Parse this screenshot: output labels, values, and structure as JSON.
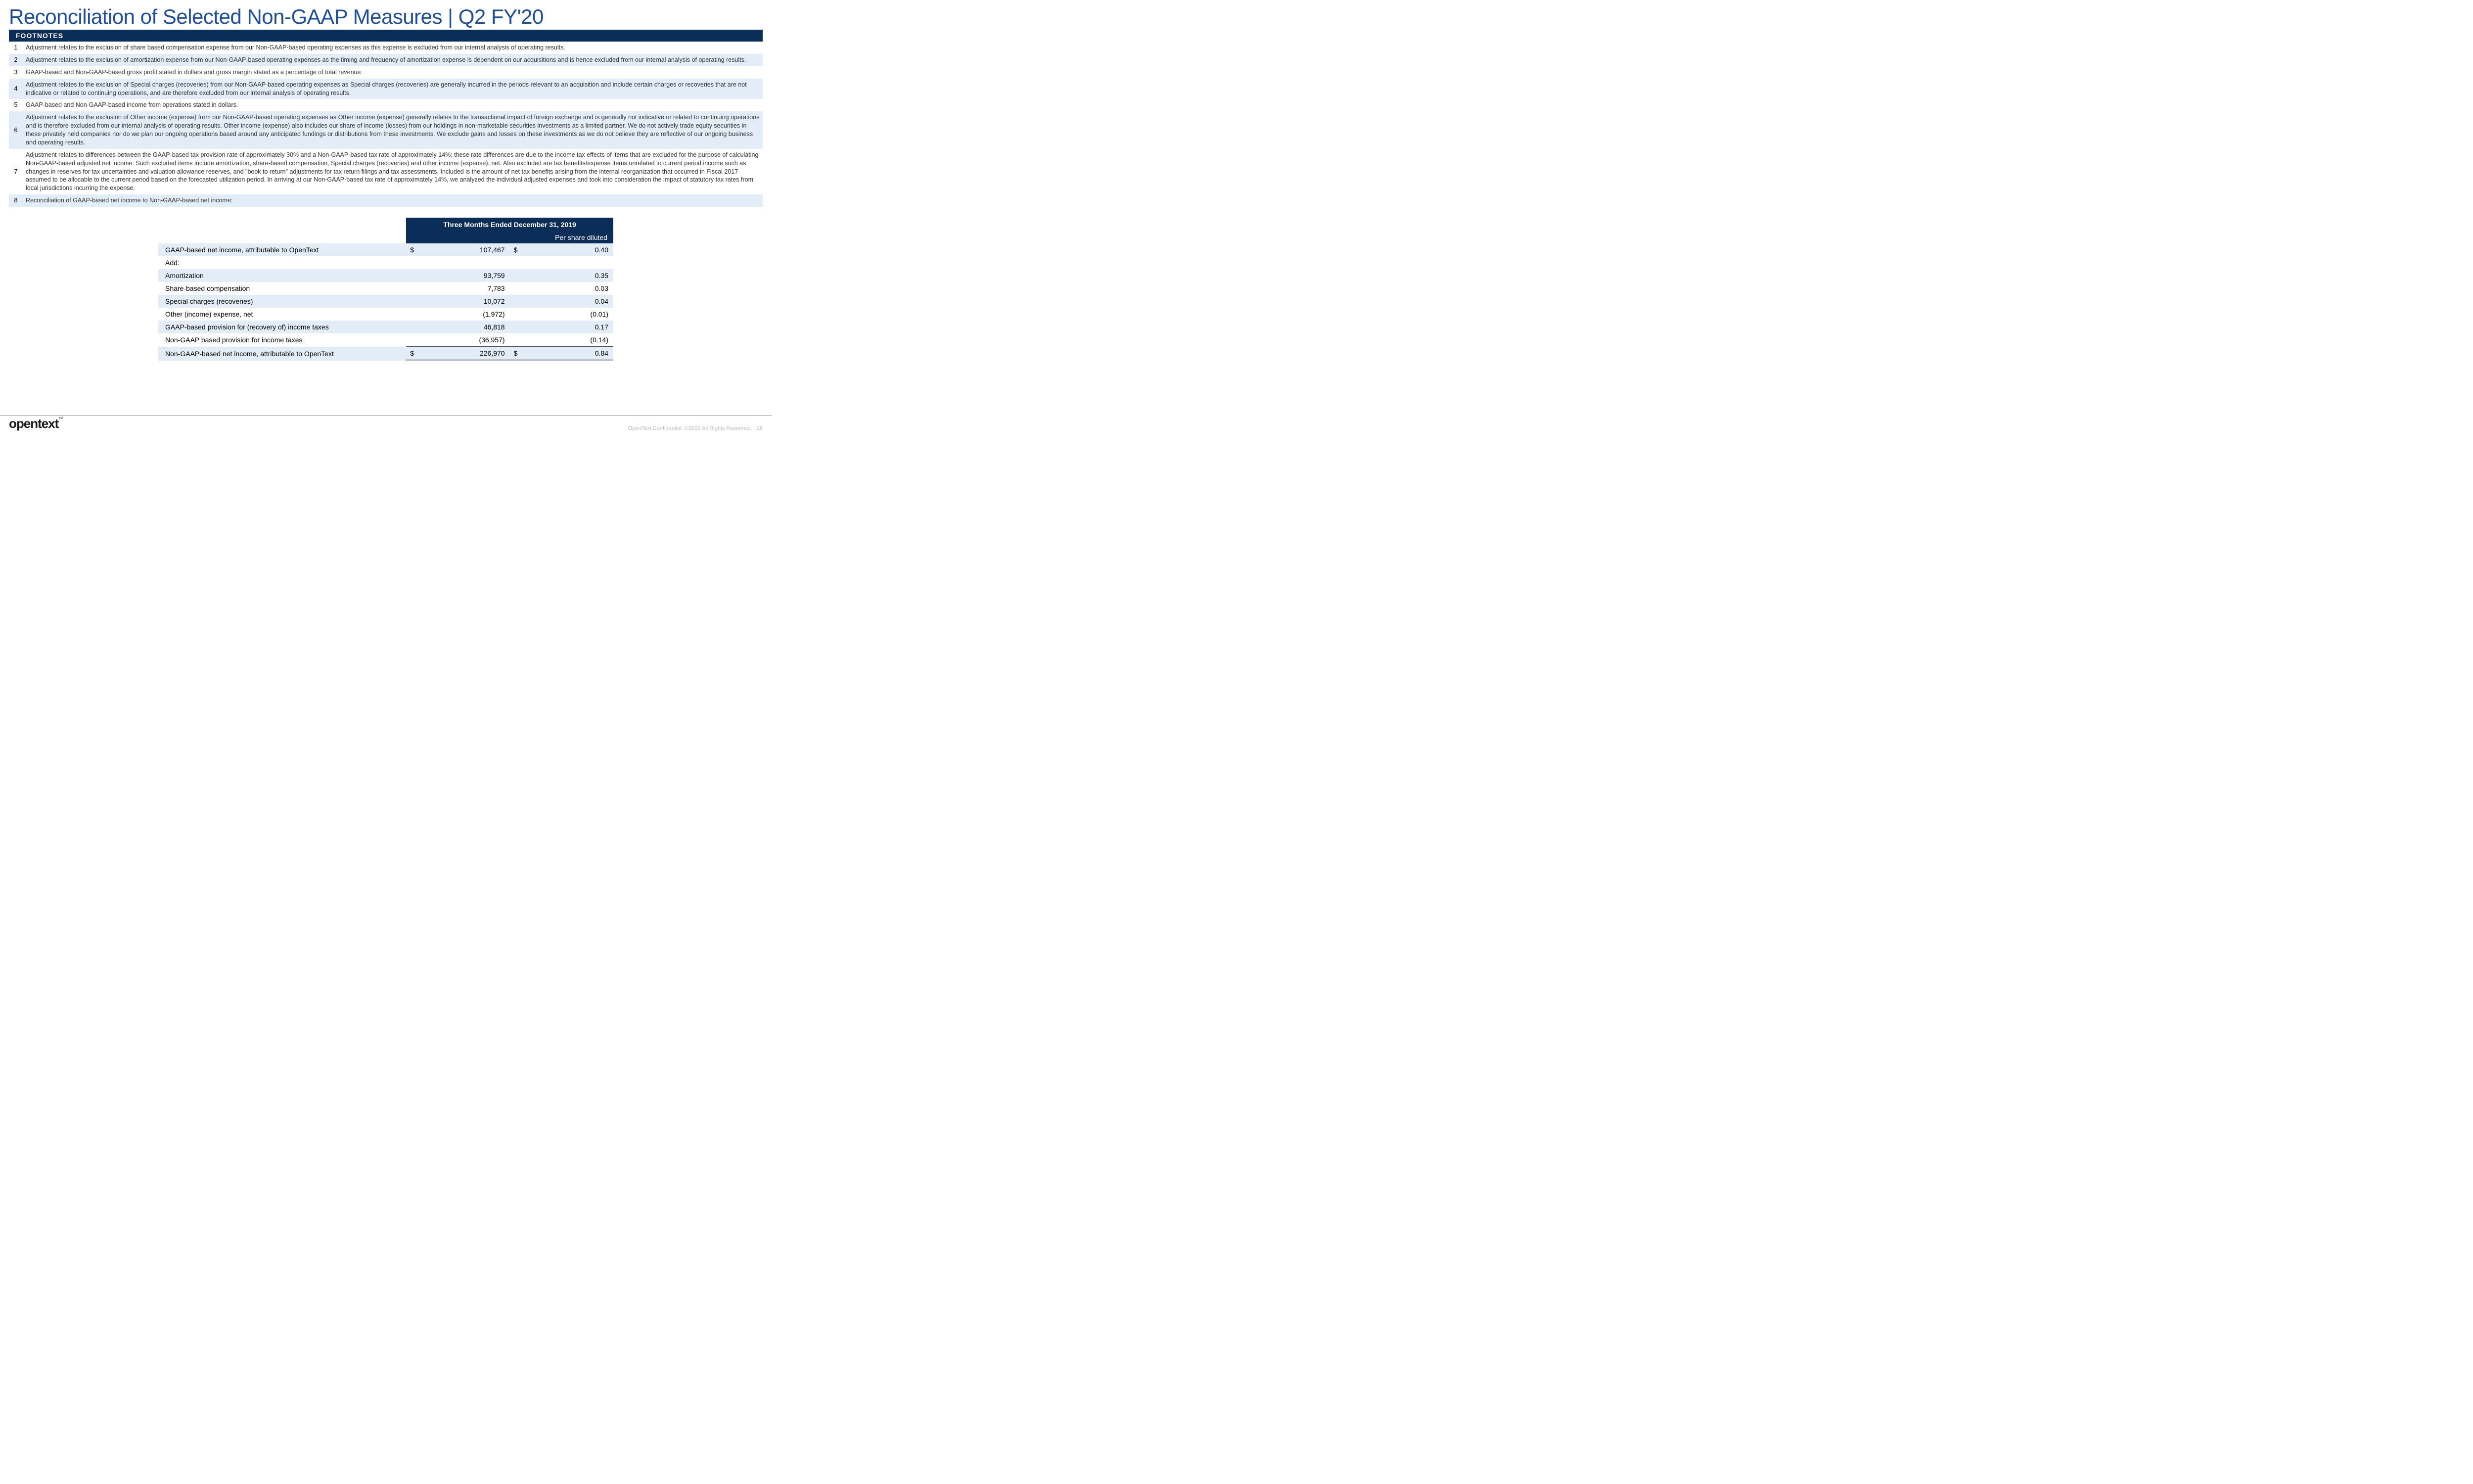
{
  "colors": {
    "title": "#1f4e9c",
    "bar_bg": "#0b2e59",
    "row_alt": "#e3edf7",
    "text": "#333333",
    "footer_grey": "#bcbcbc"
  },
  "title": "Reconciliation of Selected Non-GAAP Measures | Q2 FY'20",
  "footnotes_header": "FOOTNOTES",
  "footnotes": [
    {
      "n": "1",
      "text": "Adjustment relates to the exclusion of share based compensation expense from our Non-GAAP-based operating expenses as this expense is excluded from our internal analysis of operating results."
    },
    {
      "n": "2",
      "text": "Adjustment relates to the exclusion of amortization expense from our Non-GAAP-based operating expenses as the timing and frequency of amortization expense is dependent on our acquisitions and is hence excluded from our internal analysis of operating results."
    },
    {
      "n": "3",
      "text": "GAAP-based and Non-GAAP-based gross profit stated in dollars and gross margin stated as a percentage of total revenue."
    },
    {
      "n": "4",
      "text": "Adjustment relates to the exclusion of Special charges (recoveries) from our Non-GAAP-based operating expenses as Special charges (recoveries) are generally incurred in the periods relevant to an acquisition and include certain charges or recoveries that are not indicative or related to continuing operations, and are therefore excluded from our internal analysis of operating results."
    },
    {
      "n": "5",
      "text": "GAAP-based and Non-GAAP-based income from operations stated in dollars."
    },
    {
      "n": "6",
      "text": "Adjustment relates to the exclusion of Other income (expense) from our Non-GAAP-based operating expenses as Other income (expense) generally relates to the transactional impact of foreign exchange and is generally not indicative or related to continuing operations and is therefore excluded from our internal analysis of operating results. Other income (expense) also includes our share of income (losses) from our holdings in non-marketable securities investments as a limited partner. We do not actively trade equity securities in these privately held companies nor do we plan our ongoing operations based around any anticipated fundings or distributions from these investments. We exclude gains and losses on these investments as we do not believe they are reflective of our ongoing business and operating results."
    },
    {
      "n": "7",
      "text": "Adjustment relates to differences between the GAAP-based tax provision rate of approximately 30% and a Non-GAAP-based tax rate of approximately 14%; these rate differences are due to the income tax effects of items that are excluded for the purpose of calculating Non-GAAP-based adjusted net income. Such excluded items include amortization, share-based compensation, Special charges (recoveries) and other income (expense), net. Also excluded are tax benefits/expense items unrelated to current period income such as changes in reserves for tax uncertainties and valuation allowance reserves, and \"book to return\" adjustments for tax return filings and tax assessments. Included is the amount of net tax benefits arising from the internal reorganization that occurred in Fiscal 2017 assumed to be allocable to the current period based on the forecasted utilization period. In arriving at our Non-GAAP-based tax rate of approximately 14%, we analyzed the individual adjusted expenses and took into consideration the impact of statutory tax rates from local jurisdictions incurring the expense."
    },
    {
      "n": "8",
      "text": "Reconciliation of GAAP-based net income to Non-GAAP-based net income:"
    }
  ],
  "recon": {
    "period_header": "Three Months Ended December 31, 2019",
    "sub_header": "Per share diluted",
    "rows": [
      {
        "label": "GAAP-based net income, attributable to OpenText",
        "c1": "$",
        "v1": "107,467",
        "c2": "$",
        "v2": "0.40",
        "alt": true
      },
      {
        "label": "Add:",
        "c1": "",
        "v1": "",
        "c2": "",
        "v2": "",
        "alt": false
      },
      {
        "label": "Amortization",
        "c1": "",
        "v1": "93,759",
        "c2": "",
        "v2": "0.35",
        "alt": true
      },
      {
        "label": "Share-based compensation",
        "c1": "",
        "v1": "7,783",
        "c2": "",
        "v2": "0.03",
        "alt": false
      },
      {
        "label": "Special charges (recoveries)",
        "c1": "",
        "v1": "10,072",
        "c2": "",
        "v2": "0.04",
        "alt": true
      },
      {
        "label": "Other (income) expense, net",
        "c1": "",
        "v1": "(1,972)",
        "c2": "",
        "v2": "(0.01)",
        "alt": false
      },
      {
        "label": "GAAP-based provision for (recovery of) income taxes",
        "c1": "",
        "v1": "46,818",
        "c2": "",
        "v2": "0.17",
        "alt": true
      },
      {
        "label": "Non-GAAP based provision for income taxes",
        "c1": "",
        "v1": "(36,957)",
        "c2": "",
        "v2": "(0.14)",
        "alt": false
      },
      {
        "label": "Non-GAAP-based net income, attributable to OpenText",
        "c1": "$",
        "v1": "226,970",
        "c2": "$",
        "v2": "0.84",
        "alt": true,
        "total": true
      }
    ]
  },
  "footer": {
    "logo": "opentext",
    "tm": "™",
    "confidential": "OpenText Confidential. ©2020 All Rights Reserved.",
    "page": "16"
  }
}
